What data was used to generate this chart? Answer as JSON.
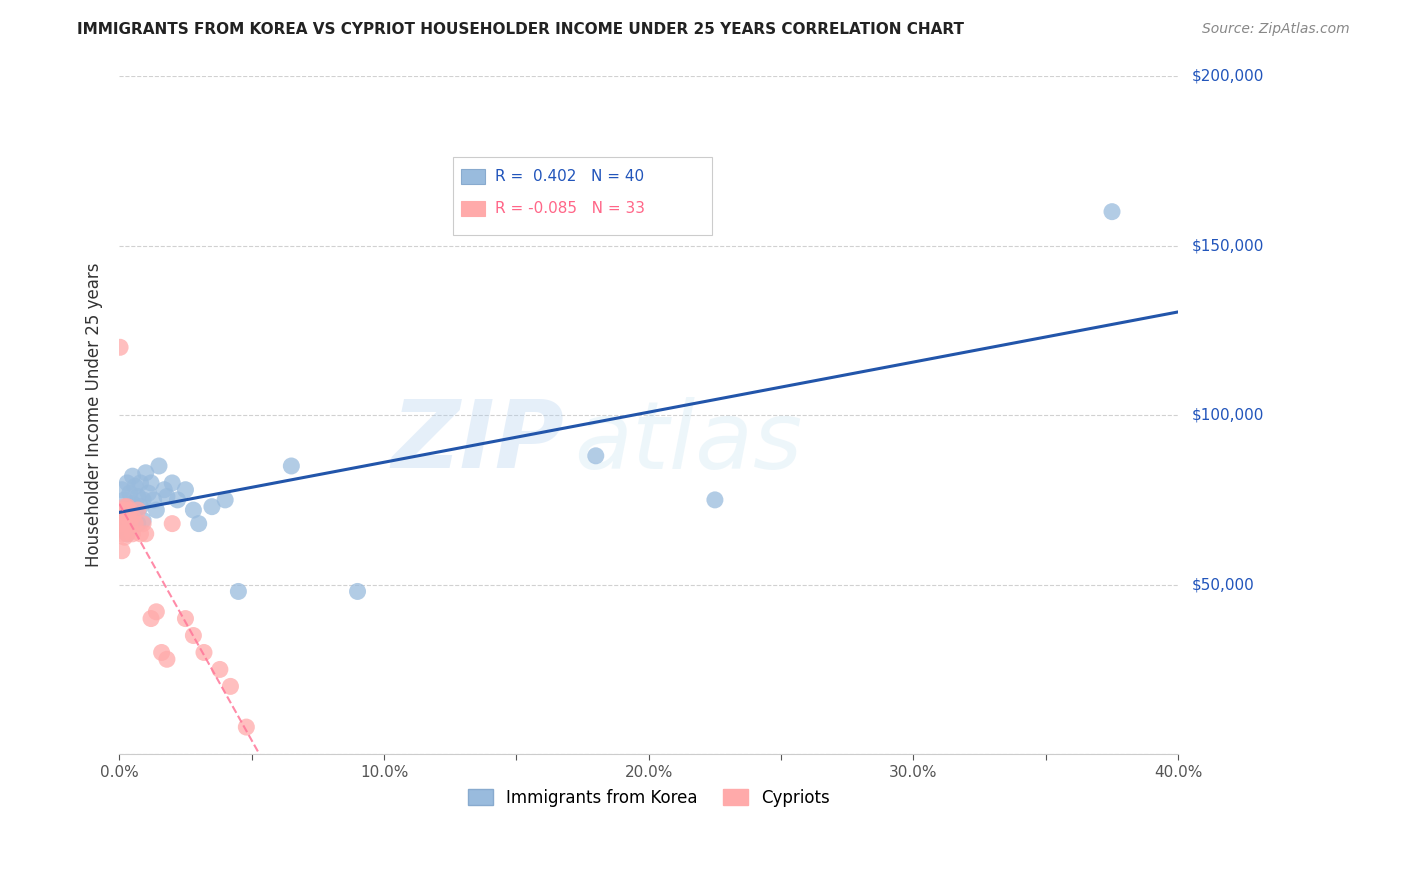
{
  "title": "IMMIGRANTS FROM KOREA VS CYPRIOT HOUSEHOLDER INCOME UNDER 25 YEARS CORRELATION CHART",
  "source": "Source: ZipAtlas.com",
  "ylabel": "Householder Income Under 25 years",
  "legend_label1": "Immigrants from Korea",
  "legend_label2": "Cypriots",
  "R1": 0.402,
  "N1": 40,
  "R2": -0.085,
  "N2": 33,
  "xlim": [
    0.0,
    0.4
  ],
  "ylim": [
    0,
    200000
  ],
  "blue_color": "#99BBDD",
  "pink_color": "#FFAAAA",
  "trendline_blue": "#2255AA",
  "trendline_pink": "#FF7799",
  "watermark_zip": "ZIP",
  "watermark_atlas": "atlas",
  "korea_x": [
    0.001,
    0.001,
    0.002,
    0.002,
    0.003,
    0.003,
    0.003,
    0.004,
    0.004,
    0.005,
    0.005,
    0.006,
    0.006,
    0.007,
    0.007,
    0.008,
    0.008,
    0.009,
    0.009,
    0.01,
    0.011,
    0.012,
    0.013,
    0.014,
    0.015,
    0.017,
    0.018,
    0.02,
    0.022,
    0.025,
    0.028,
    0.03,
    0.035,
    0.04,
    0.045,
    0.065,
    0.09,
    0.18,
    0.225,
    0.375
  ],
  "korea_y": [
    72000,
    78000,
    75000,
    68000,
    80000,
    73000,
    65000,
    77000,
    70000,
    82000,
    74000,
    79000,
    72000,
    76000,
    68000,
    80000,
    73000,
    75000,
    69000,
    83000,
    77000,
    80000,
    75000,
    72000,
    85000,
    78000,
    76000,
    80000,
    75000,
    78000,
    72000,
    68000,
    73000,
    75000,
    48000,
    85000,
    48000,
    88000,
    75000,
    160000
  ],
  "cypriot_x": [
    0.0003,
    0.0005,
    0.001,
    0.001,
    0.001,
    0.001,
    0.002,
    0.002,
    0.002,
    0.002,
    0.003,
    0.003,
    0.003,
    0.004,
    0.004,
    0.005,
    0.005,
    0.006,
    0.007,
    0.008,
    0.009,
    0.01,
    0.012,
    0.014,
    0.016,
    0.018,
    0.02,
    0.025,
    0.028,
    0.032,
    0.038,
    0.042,
    0.048
  ],
  "cypriot_y": [
    120000,
    68000,
    65000,
    72000,
    60000,
    68000,
    72000,
    68000,
    64000,
    73000,
    70000,
    65000,
    73000,
    68000,
    72000,
    70000,
    65000,
    68000,
    72000,
    65000,
    68000,
    65000,
    40000,
    42000,
    30000,
    28000,
    68000,
    40000,
    35000,
    30000,
    25000,
    20000,
    8000
  ],
  "ytick_values": [
    0,
    50000,
    100000,
    150000,
    200000
  ],
  "ytick_labels": [
    "",
    "$50,000",
    "$100,000",
    "$150,000",
    "$200,000"
  ],
  "xtick_values": [
    0.0,
    0.05,
    0.1,
    0.15,
    0.2,
    0.25,
    0.3,
    0.35,
    0.4
  ],
  "xtick_labels": [
    "0.0%",
    "",
    "10.0%",
    "",
    "20.0%",
    "",
    "30.0%",
    "",
    "40.0%"
  ]
}
